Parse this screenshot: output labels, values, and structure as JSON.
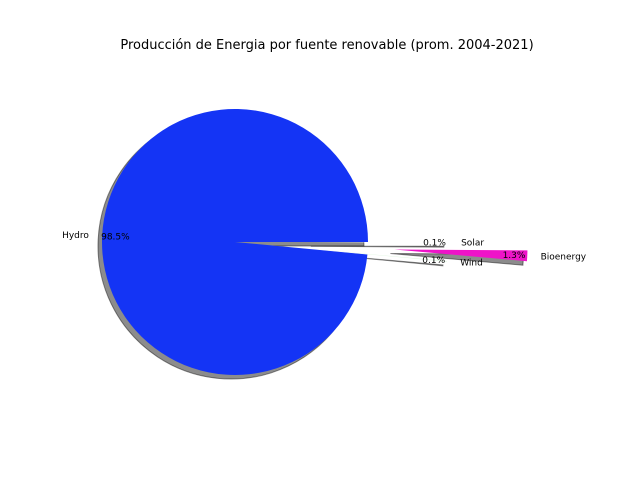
{
  "chart_data": {
    "type": "pie",
    "title": "Producción de Energia por fuente renovable (prom. 2004-2021)",
    "slices": [
      {
        "label": "Hydro",
        "value": 98.5,
        "pct_label": "98.5%",
        "color": "#1434f5"
      },
      {
        "label": "Wind",
        "value": 0.1,
        "pct_label": "0.1%",
        "color": "#e0f5e0"
      },
      {
        "label": "Bioenergy",
        "value": 1.3,
        "pct_label": "1.3%",
        "color": "#ee14c8"
      },
      {
        "label": "Solar",
        "value": 0.1,
        "pct_label": "0.1%",
        "color": "#ffffff"
      }
    ],
    "shadow": true,
    "legend": "none"
  }
}
